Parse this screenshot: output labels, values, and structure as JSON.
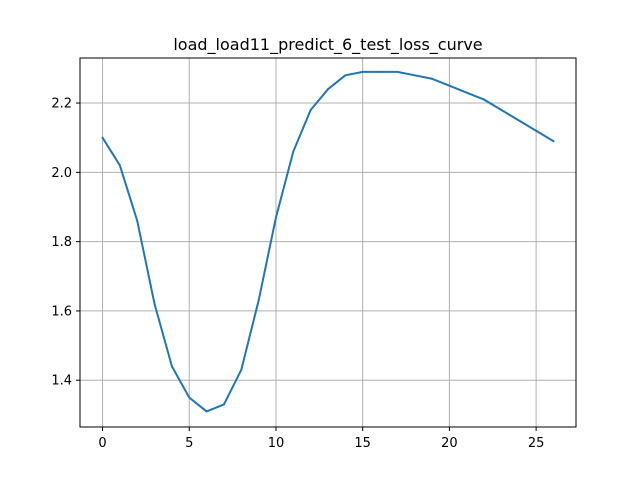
{
  "chart_data": {
    "type": "line",
    "title": "load_load11_predict_6_test_loss_curve",
    "xlabel": "",
    "ylabel": "",
    "xlim": [
      -1.3,
      27.3
    ],
    "ylim": [
      1.265,
      2.33
    ],
    "xticks": [
      0,
      5,
      10,
      15,
      20,
      25
    ],
    "yticks": [
      1.4,
      1.6,
      1.8,
      2.0,
      2.2
    ],
    "grid": true,
    "series": [
      {
        "color": "#1f77b4",
        "x": [
          0,
          1,
          2,
          3,
          4,
          5,
          6,
          7,
          8,
          9,
          10,
          11,
          12,
          13,
          14,
          15,
          16,
          17,
          18,
          19,
          20,
          21,
          22,
          23,
          24,
          25,
          26
        ],
        "y": [
          2.1,
          2.02,
          1.86,
          1.62,
          1.44,
          1.35,
          1.31,
          1.33,
          1.43,
          1.63,
          1.87,
          2.06,
          2.18,
          2.24,
          2.28,
          2.29,
          2.29,
          2.29,
          2.28,
          2.27,
          2.25,
          2.23,
          2.21,
          2.18,
          2.15,
          2.12,
          2.09
        ]
      }
    ]
  }
}
